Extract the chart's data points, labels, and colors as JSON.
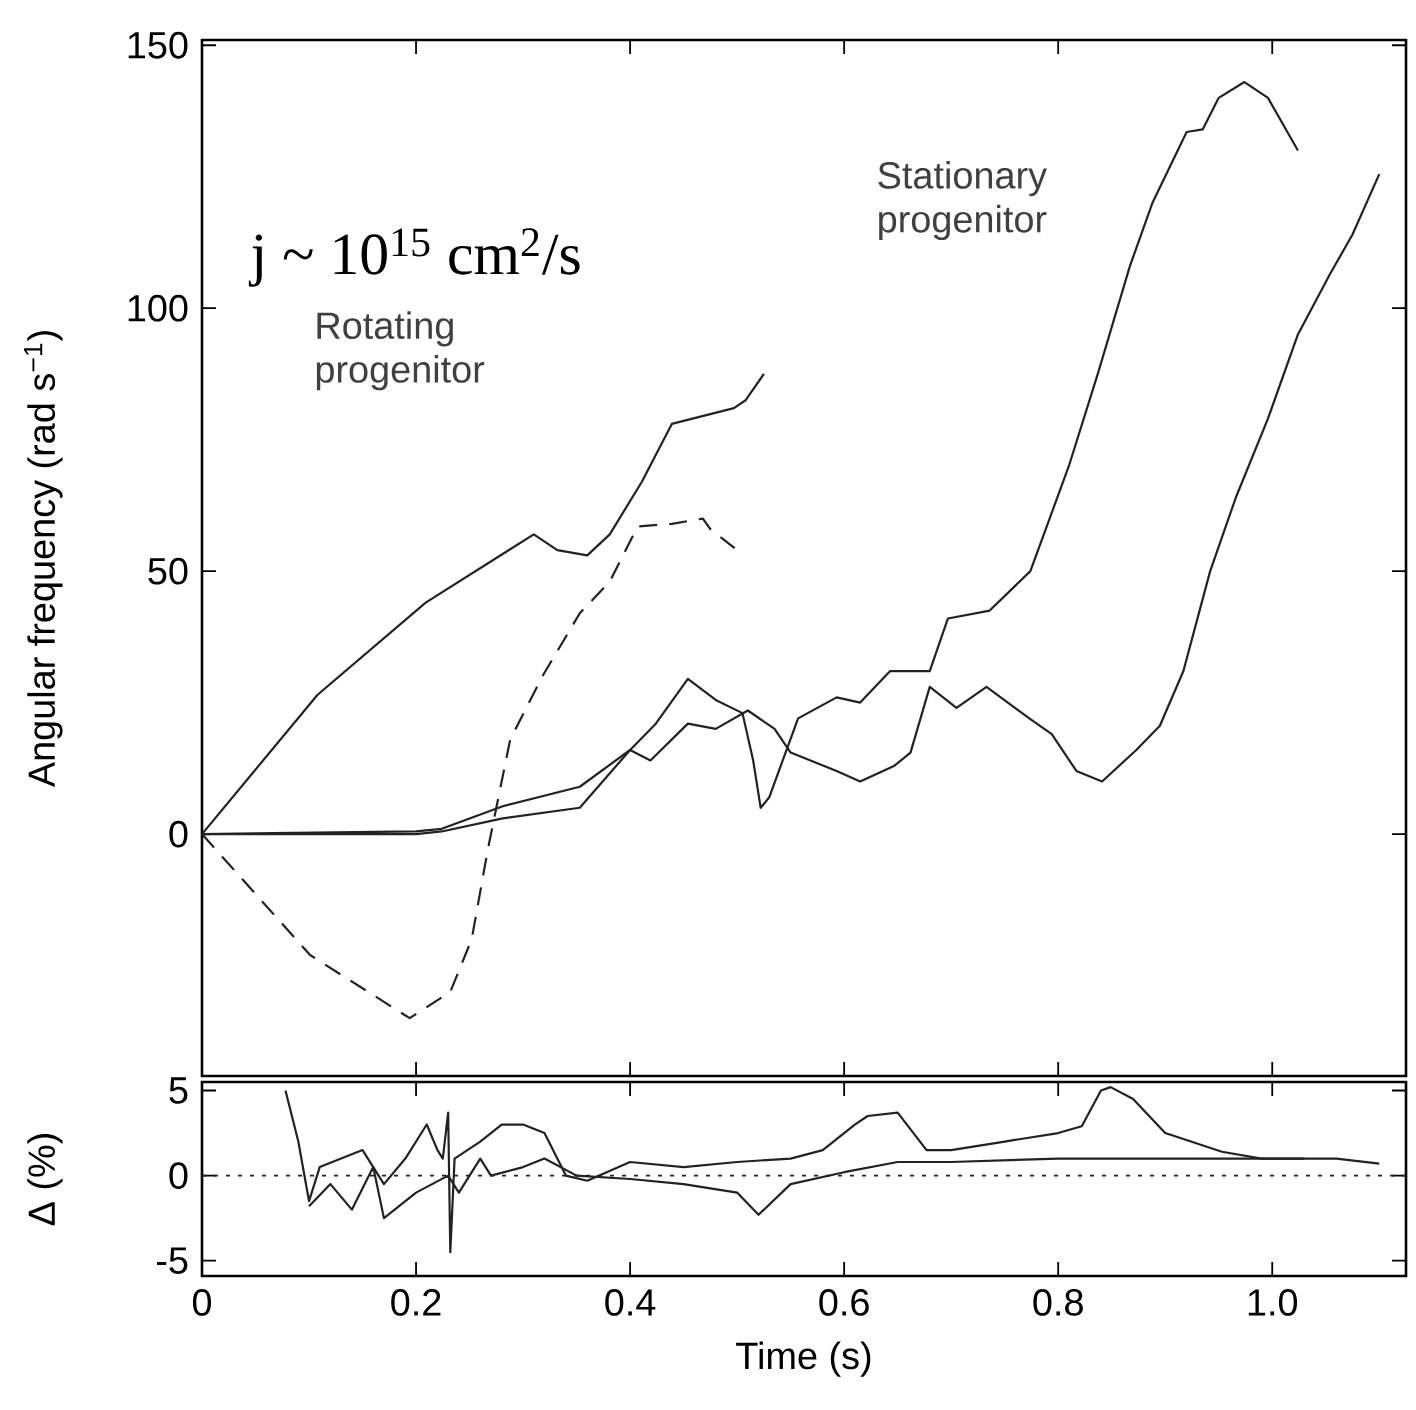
{
  "chart_data": [
    {
      "type": "line",
      "ylabel": "Angular frequency (rad s$^{−1}$)",
      "xlim": [
        0,
        1.125
      ],
      "ylim": [
        -46,
        151
      ],
      "xticks": [
        0,
        0.2,
        0.4,
        0.6,
        0.8,
        1
      ],
      "yticks": [
        0,
        50,
        100,
        150
      ],
      "tick_labels": "y",
      "grid": false,
      "marker": "none",
      "annotations": [
        "j ~ 10$^{15}$ cm$^{2}$/s",
        "Rotating progenitor",
        "Stationary progenitor"
      ],
      "series": [
        {
          "color": "#222222",
          "line_style": "solid",
          "x": [
            0,
            0.108,
            0.209,
            0.31,
            0.332,
            0.36,
            0.381,
            0.411,
            0.439,
            0.497,
            0.508,
            0.525
          ],
          "values": [
            0,
            26.5,
            44,
            57,
            54,
            53,
            57,
            67,
            78,
            81,
            82.5,
            87.5
          ]
        },
        {
          "color": "#222222",
          "line_style": "dashed",
          "x": [
            0,
            0.101,
            0.194,
            0.232,
            0.252,
            0.267,
            0.288,
            0.318,
            0.353,
            0.381,
            0.407,
            0.439,
            0.468,
            0.475,
            0.5
          ],
          "values": [
            0,
            -23,
            -35,
            -30,
            -20,
            -3,
            18,
            30,
            42,
            48,
            58.5,
            59,
            60,
            58,
            54
          ]
        },
        {
          "color": "#222222",
          "line_style": "solid",
          "x": [
            0,
            0.2,
            0.224,
            0.281,
            0.353,
            0.4,
            0.424,
            0.454,
            0.48,
            0.505,
            0.515,
            0.522,
            0.53,
            0.557,
            0.593,
            0.615,
            0.643,
            0.68,
            0.697,
            0.736,
            0.774,
            0.81,
            0.837,
            0.867,
            0.888,
            0.92,
            0.935,
            0.95,
            0.974,
            0.996,
            1.024
          ],
          "values": [
            0,
            0.5,
            1,
            5.3,
            9,
            16,
            21,
            29.5,
            25.5,
            23,
            14,
            5,
            7,
            22,
            26,
            25,
            31,
            31,
            41,
            42.5,
            50,
            70,
            87.5,
            108,
            120,
            133.5,
            134,
            140,
            143,
            140,
            130
          ]
        },
        {
          "color": "#222222",
          "line_style": "solid",
          "x": [
            0,
            0.2,
            0.224,
            0.281,
            0.353,
            0.4,
            0.419,
            0.454,
            0.48,
            0.51,
            0.535,
            0.55,
            0.593,
            0.615,
            0.647,
            0.662,
            0.68,
            0.705,
            0.733,
            0.773,
            0.794,
            0.817,
            0.841,
            0.873,
            0.895,
            0.917,
            0.942,
            0.966,
            0.996,
            1.024,
            1.054,
            1.075,
            1.1
          ],
          "values": [
            0,
            0,
            0.5,
            3,
            5,
            16,
            14,
            21,
            20,
            23.5,
            20,
            15.5,
            12,
            10,
            13,
            15.5,
            28,
            24,
            28,
            22,
            19,
            12,
            10,
            16,
            20.6,
            31,
            50,
            64,
            79,
            95,
            106.5,
            114,
            125.5
          ]
        }
      ]
    },
    {
      "type": "line",
      "xlabel": "Time (s)",
      "ylabel": "Δ (%)",
      "xlim": [
        0,
        1.125
      ],
      "ylim": [
        -5.9,
        5.5
      ],
      "xticks": [
        0,
        0.2,
        0.4,
        0.6,
        0.8,
        {
          "value": 1,
          "label": "1.0"
        }
      ],
      "yticks": [
        -5,
        0,
        5
      ],
      "grid": false,
      "marker": "none",
      "ref_lines": [
        {
          "axis": "y",
          "value": 0,
          "line_style": "dotted",
          "color": "#222222"
        }
      ],
      "series": [
        {
          "color": "#222222",
          "line_style": "solid",
          "x": [
            0.078,
            0.09,
            0.1,
            0.11,
            0.13,
            0.15,
            0.17,
            0.19,
            0.21,
            0.22,
            0.225,
            0.23,
            0.232,
            0.236,
            0.26,
            0.28,
            0.3,
            0.32,
            0.34,
            0.36,
            0.4,
            0.45,
            0.5,
            0.55,
            0.58,
            0.61,
            0.622,
            0.65,
            0.677,
            0.7,
            0.75,
            0.8,
            0.822,
            0.84,
            0.849,
            0.87,
            0.9,
            0.953,
            0.99,
            1.03,
            1.06,
            1.1
          ],
          "values": [
            5,
            2,
            -1.5,
            0.5,
            1,
            1.5,
            -0.5,
            1,
            3,
            1.5,
            1,
            3.7,
            -4.5,
            1,
            2,
            3,
            3,
            2.5,
            0,
            -0.3,
            0.8,
            0.5,
            0.8,
            1,
            1.5,
            3,
            3.5,
            3.7,
            1.5,
            1.5,
            2,
            2.5,
            2.9,
            5,
            5.2,
            4.5,
            2.5,
            1.4,
            1,
            1,
            1,
            0.7
          ]
        },
        {
          "color": "#222222",
          "line_style": "solid",
          "x": [
            0.1,
            0.12,
            0.14,
            0.16,
            0.17,
            0.2,
            0.23,
            0.24,
            0.26,
            0.27,
            0.3,
            0.32,
            0.35,
            0.4,
            0.45,
            0.5,
            0.52,
            0.55,
            0.6,
            0.65,
            0.7,
            0.8,
            0.9,
            1.0,
            1.03
          ],
          "values": [
            -1.8,
            -0.5,
            -2,
            0.5,
            -2.5,
            -1,
            0,
            -1,
            1,
            0,
            0.5,
            1,
            0,
            -0.2,
            -0.5,
            -1,
            -2.3,
            -0.5,
            0.2,
            0.8,
            0.8,
            1,
            1,
            1,
            1
          ]
        }
      ]
    }
  ]
}
